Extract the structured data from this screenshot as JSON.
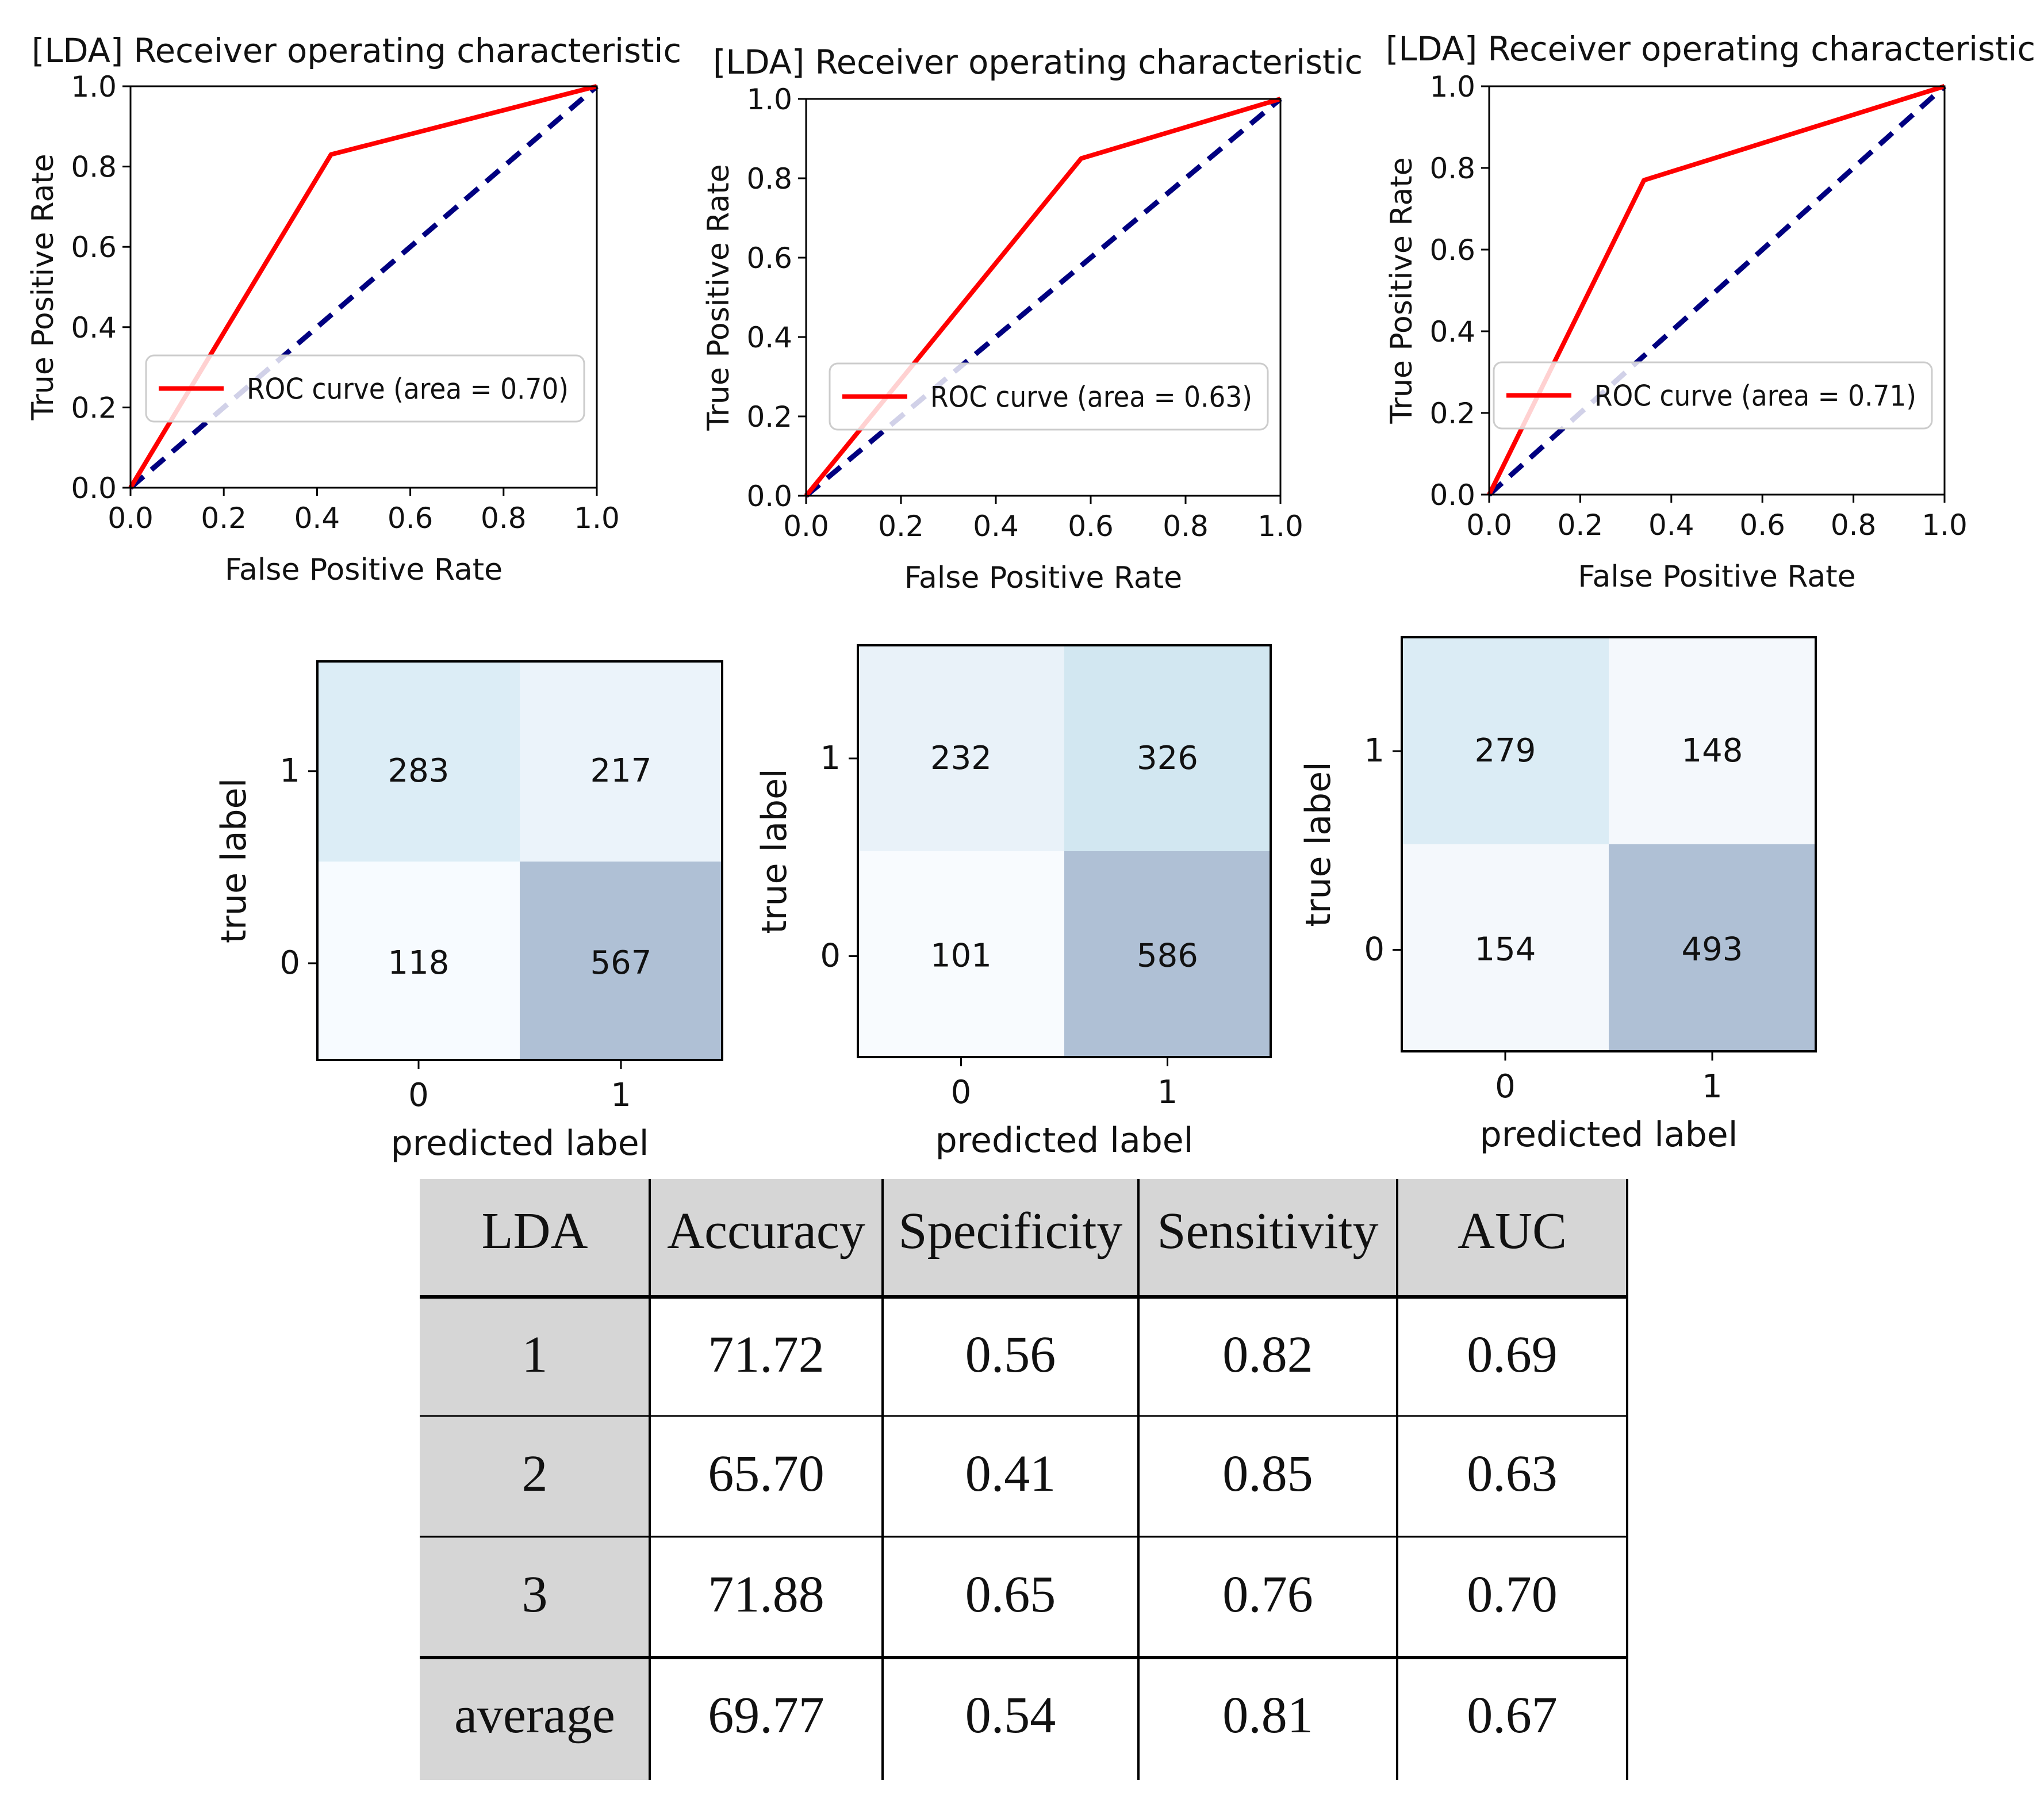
{
  "chart_data": [
    {
      "type": "line",
      "title": "[LDA] Receiver operating characteristic",
      "xlabel": "False Positive Rate",
      "ylabel": "True Positive Rate",
      "xlim": [
        0.0,
        1.0
      ],
      "ylim": [
        0.0,
        1.0
      ],
      "xticks": [
        "0.0",
        "0.2",
        "0.4",
        "0.6",
        "0.8",
        "1.0"
      ],
      "yticks": [
        "0.0",
        "0.2",
        "0.4",
        "0.6",
        "0.8",
        "1.0"
      ],
      "legend": "ROC curve (area = 0.70)",
      "legend_position": "lower-right",
      "series": [
        {
          "name": "ROC curve",
          "color": "#ff0000",
          "style": "solid",
          "x": [
            0.0,
            0.43,
            1.0
          ],
          "y": [
            0.0,
            0.83,
            1.0
          ]
        },
        {
          "name": "chance",
          "color": "#000080",
          "style": "dashed",
          "x": [
            0.0,
            1.0
          ],
          "y": [
            0.0,
            1.0
          ]
        }
      ]
    },
    {
      "type": "line",
      "title": "[LDA] Receiver operating characteristic",
      "xlabel": "False Positive Rate",
      "ylabel": "True Positive Rate",
      "xlim": [
        0.0,
        1.0
      ],
      "ylim": [
        0.0,
        1.0
      ],
      "xticks": [
        "0.0",
        "0.2",
        "0.4",
        "0.6",
        "0.8",
        "1.0"
      ],
      "yticks": [
        "0.0",
        "0.2",
        "0.4",
        "0.6",
        "0.8",
        "1.0"
      ],
      "legend": "ROC curve (area = 0.63)",
      "legend_position": "lower-right",
      "series": [
        {
          "name": "ROC curve",
          "color": "#ff0000",
          "style": "solid",
          "x": [
            0.0,
            0.58,
            1.0
          ],
          "y": [
            0.0,
            0.85,
            1.0
          ]
        },
        {
          "name": "chance",
          "color": "#000080",
          "style": "dashed",
          "x": [
            0.0,
            1.0
          ],
          "y": [
            0.0,
            1.0
          ]
        }
      ]
    },
    {
      "type": "line",
      "title": "[LDA] Receiver operating characteristic",
      "xlabel": "False Positive Rate",
      "ylabel": "True Positive Rate",
      "xlim": [
        0.0,
        1.0
      ],
      "ylim": [
        0.0,
        1.0
      ],
      "xticks": [
        "0.0",
        "0.2",
        "0.4",
        "0.6",
        "0.8",
        "1.0"
      ],
      "yticks": [
        "0.0",
        "0.2",
        "0.4",
        "0.6",
        "0.8",
        "1.0"
      ],
      "legend": "ROC curve (area = 0.71)",
      "legend_position": "lower-right",
      "series": [
        {
          "name": "ROC curve",
          "color": "#ff0000",
          "style": "solid",
          "x": [
            0.0,
            0.34,
            1.0
          ],
          "y": [
            0.0,
            0.77,
            1.0
          ]
        },
        {
          "name": "chance",
          "color": "#000080",
          "style": "dashed",
          "x": [
            0.0,
            1.0
          ],
          "y": [
            0.0,
            1.0
          ]
        }
      ]
    },
    {
      "type": "heatmap",
      "xlabel": "predicted label",
      "ylabel": "true label",
      "x_ticks": [
        "0",
        "1"
      ],
      "y_ticks": [
        "1",
        "0"
      ],
      "cells": [
        [
          283,
          217
        ],
        [
          118,
          567
        ]
      ],
      "colors": [
        [
          "#dcedf6",
          "#ebf3fa"
        ],
        [
          "#f7fbff",
          "#afc0d5"
        ]
      ]
    },
    {
      "type": "heatmap",
      "xlabel": "predicted label",
      "ylabel": "true label",
      "x_ticks": [
        "0",
        "1"
      ],
      "y_ticks": [
        "1",
        "0"
      ],
      "cells": [
        [
          232,
          326
        ],
        [
          101,
          586
        ]
      ],
      "colors": [
        [
          "#e9f2f9",
          "#d2e7f1"
        ],
        [
          "#f8fbfe",
          "#afc0d5"
        ]
      ]
    },
    {
      "type": "heatmap",
      "xlabel": "predicted label",
      "ylabel": "true label",
      "x_ticks": [
        "0",
        "1"
      ],
      "y_ticks": [
        "1",
        "0"
      ],
      "cells": [
        [
          279,
          148
        ],
        [
          154,
          493
        ]
      ],
      "colors": [
        [
          "#dbecf5",
          "#f4f8fc"
        ],
        [
          "#f4f8fc",
          "#afc0d5"
        ]
      ]
    },
    {
      "type": "table",
      "columns": [
        "LDA",
        "Accuracy",
        "Specificity",
        "Sensitivity",
        "AUC"
      ],
      "rows": [
        [
          "1",
          "71.72",
          "0.56",
          "0.82",
          "0.69"
        ],
        [
          "2",
          "65.70",
          "0.41",
          "0.85",
          "0.63"
        ],
        [
          "3",
          "71.88",
          "0.65",
          "0.76",
          "0.70"
        ],
        [
          "average",
          "69.77",
          "0.54",
          "0.81",
          "0.67"
        ]
      ],
      "shade_color": "#d6d6d6"
    }
  ]
}
